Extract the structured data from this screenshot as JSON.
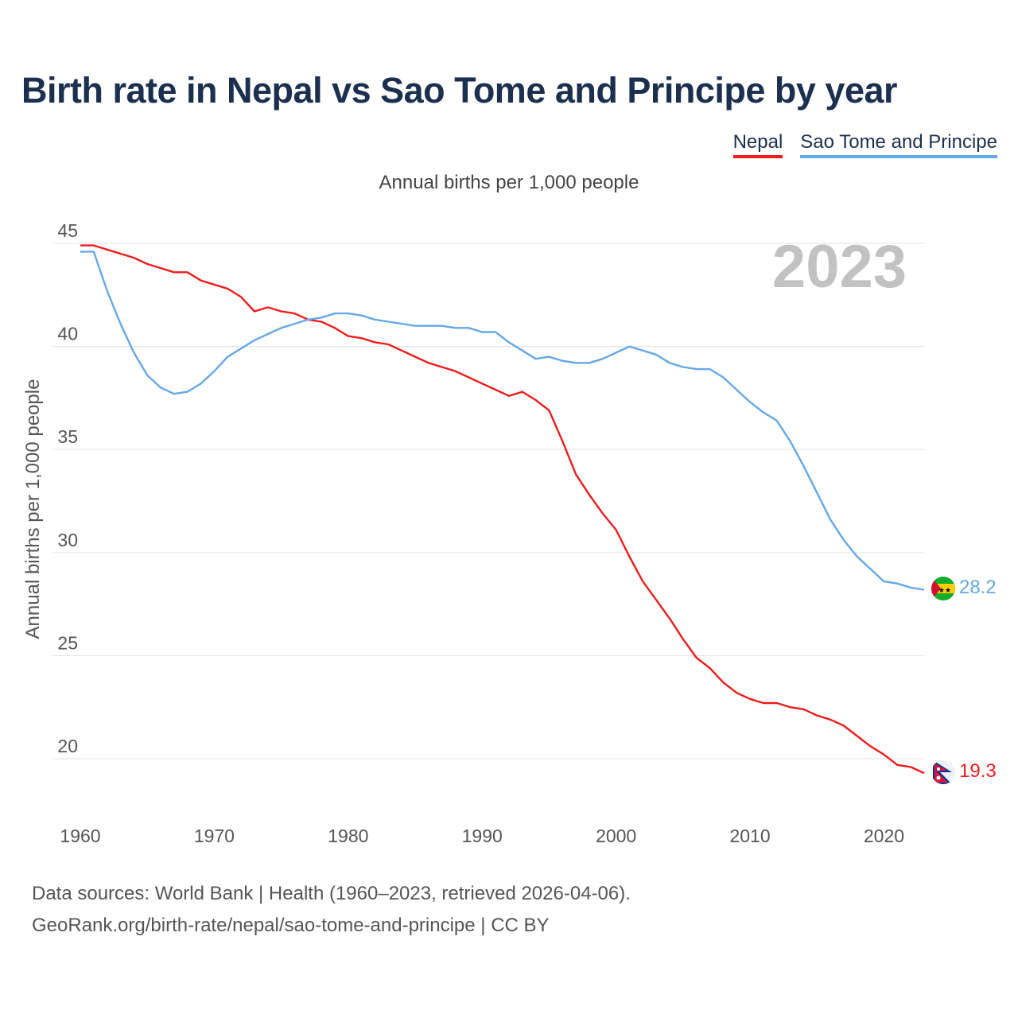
{
  "chart_data": {
    "type": "line",
    "title": "Birth rate in Nepal vs Sao Tome and Principe by year",
    "subtitle": "Annual births per 1,000 people",
    "ylabel": "Annual births per 1,000 people",
    "xlabel": "",
    "year_overlay": "2023",
    "xlim": [
      1960,
      2023
    ],
    "ylim": [
      17.5,
      45.6
    ],
    "x_ticks": [
      1960,
      1970,
      1980,
      1990,
      2000,
      2010,
      2020
    ],
    "y_ticks": [
      20,
      25,
      30,
      35,
      40,
      45
    ],
    "grid": true,
    "legend_position": "top-right",
    "x": [
      1960,
      1961,
      1962,
      1963,
      1964,
      1965,
      1966,
      1967,
      1968,
      1969,
      1970,
      1971,
      1972,
      1973,
      1974,
      1975,
      1976,
      1977,
      1978,
      1979,
      1980,
      1981,
      1982,
      1983,
      1984,
      1985,
      1986,
      1987,
      1988,
      1989,
      1990,
      1991,
      1992,
      1993,
      1994,
      1995,
      1996,
      1997,
      1998,
      1999,
      2000,
      2001,
      2002,
      2003,
      2004,
      2005,
      2006,
      2007,
      2008,
      2009,
      2010,
      2011,
      2012,
      2013,
      2014,
      2015,
      2016,
      2017,
      2018,
      2019,
      2020,
      2021,
      2022,
      2023
    ],
    "series": [
      {
        "name": "Nepal",
        "color": "#ee1c1c",
        "end_label": "19.3",
        "values": [
          44.9,
          44.9,
          44.7,
          44.5,
          44.3,
          44.0,
          43.8,
          43.6,
          43.6,
          43.2,
          43.0,
          42.8,
          42.4,
          41.7,
          41.9,
          41.7,
          41.6,
          41.3,
          41.2,
          40.9,
          40.5,
          40.4,
          40.2,
          40.1,
          39.8,
          39.5,
          39.2,
          39.0,
          38.8,
          38.5,
          38.2,
          37.9,
          37.6,
          37.8,
          37.4,
          36.9,
          35.4,
          33.8,
          32.8,
          31.9,
          31.1,
          29.8,
          28.6,
          27.7,
          26.8,
          25.8,
          24.9,
          24.4,
          23.7,
          23.2,
          22.9,
          22.7,
          22.7,
          22.5,
          22.4,
          22.1,
          21.9,
          21.6,
          21.1,
          20.6,
          20.2,
          19.7,
          19.6,
          19.3
        ]
      },
      {
        "name": "Sao Tome and Principe",
        "color": "#64a8e8",
        "end_label": "28.2",
        "values": [
          44.6,
          44.6,
          42.7,
          41.1,
          39.7,
          38.6,
          38.0,
          37.7,
          37.8,
          38.2,
          38.8,
          39.5,
          39.9,
          40.3,
          40.6,
          40.9,
          41.1,
          41.3,
          41.4,
          41.6,
          41.6,
          41.5,
          41.3,
          41.2,
          41.1,
          41.0,
          41.0,
          41.0,
          40.9,
          40.9,
          40.7,
          40.7,
          40.2,
          39.8,
          39.4,
          39.5,
          39.3,
          39.2,
          39.2,
          39.4,
          39.7,
          40.0,
          39.8,
          39.6,
          39.2,
          39.0,
          38.9,
          38.9,
          38.5,
          37.9,
          37.3,
          36.8,
          36.4,
          35.4,
          34.2,
          32.9,
          31.6,
          30.6,
          29.8,
          29.2,
          28.6,
          28.5,
          28.3,
          28.2
        ]
      }
    ]
  },
  "footer": {
    "line1": "Data sources: World Bank | Health (1960–2023, retrieved 2026-04-06).",
    "line2": "GeoRank.org/birth-rate/nepal/sao-tome-and-principe | CC BY"
  }
}
